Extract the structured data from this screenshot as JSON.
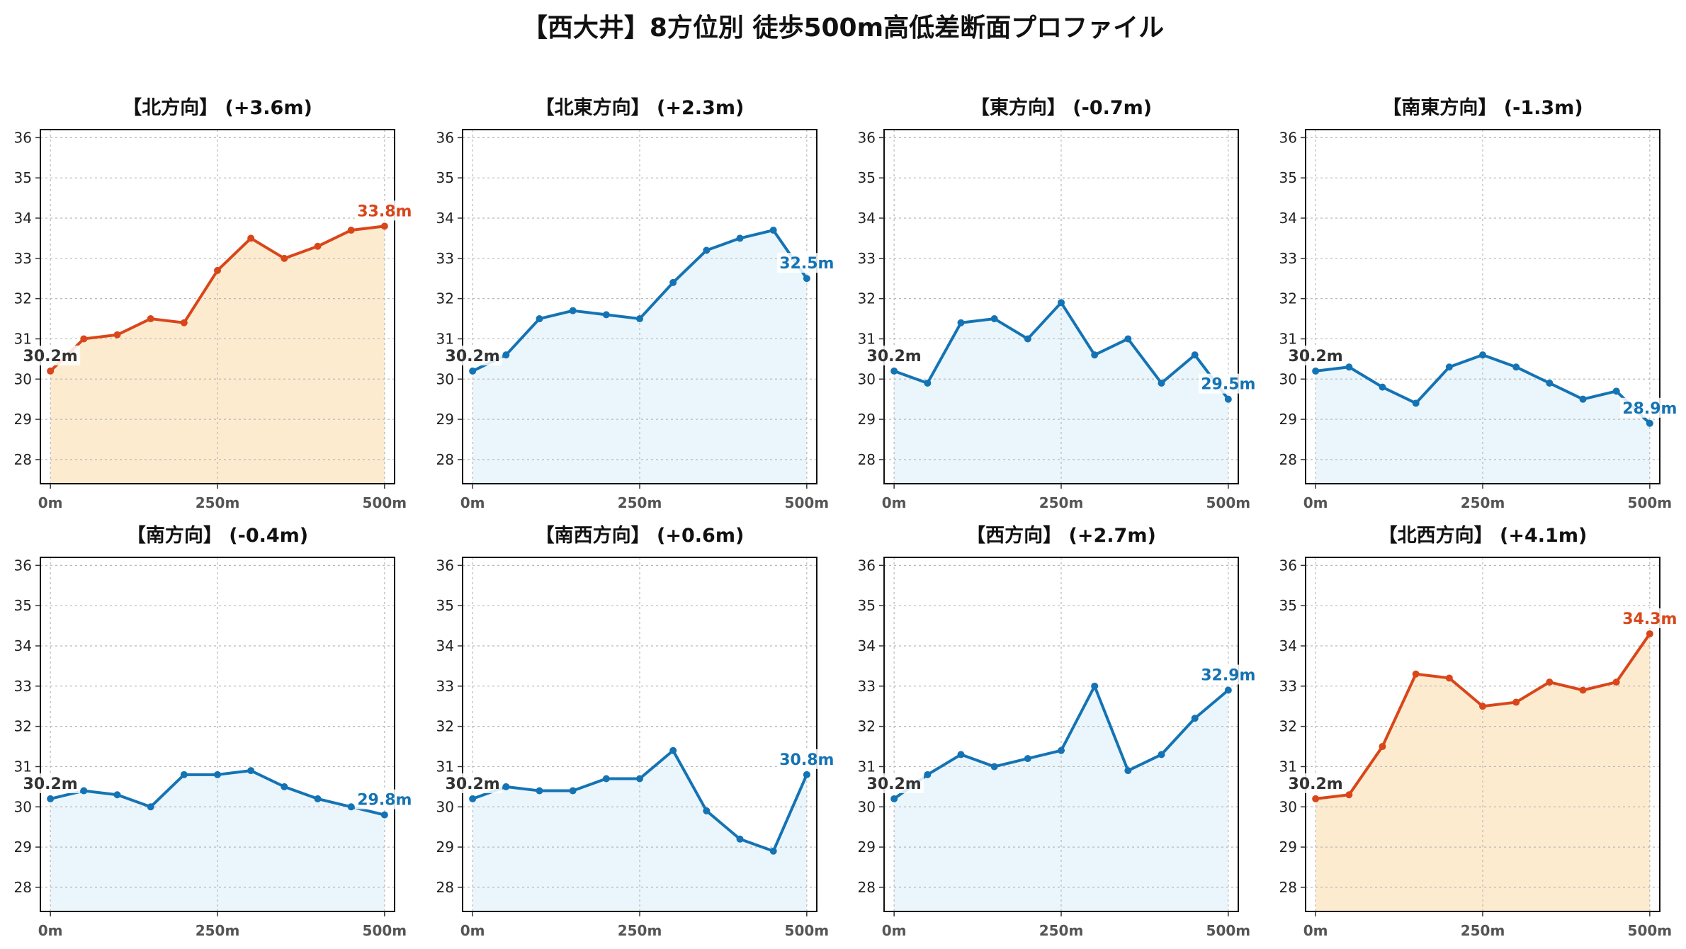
{
  "title": "【西大井】8方位別 徒歩500m高低差断面プロファイル",
  "colors": {
    "up_line": "#d9461a",
    "up_fill": "#fdebd0",
    "down_line": "#1473b4",
    "down_fill": "#eaf6fb",
    "start_label": "#333333"
  },
  "chart_data": [
    {
      "type": "area",
      "title": "【北方向】 (+3.6m)",
      "trend": "up",
      "x": [
        0,
        50,
        100,
        150,
        200,
        250,
        300,
        350,
        400,
        450,
        500
      ],
      "values": [
        30.2,
        31.0,
        31.1,
        31.5,
        31.4,
        32.7,
        33.5,
        33.0,
        33.3,
        33.7,
        33.8
      ],
      "start_label": "30.2m",
      "end_label": "33.8m",
      "xticks": [
        "0m",
        "250m",
        "500m"
      ],
      "yticks": [
        28,
        29,
        30,
        31,
        32,
        33,
        34,
        35,
        36
      ],
      "ylim": [
        27.4,
        36.2
      ],
      "xlim": [
        -15,
        515
      ],
      "grid": true
    },
    {
      "type": "area",
      "title": "【北東方向】 (+2.3m)",
      "trend": "down",
      "x": [
        0,
        50,
        100,
        150,
        200,
        250,
        300,
        350,
        400,
        450,
        500
      ],
      "values": [
        30.2,
        30.6,
        31.5,
        31.7,
        31.6,
        31.5,
        32.4,
        33.2,
        33.5,
        33.7,
        32.5
      ],
      "start_label": "30.2m",
      "end_label": "32.5m",
      "xticks": [
        "0m",
        "250m",
        "500m"
      ],
      "yticks": [
        28,
        29,
        30,
        31,
        32,
        33,
        34,
        35,
        36
      ],
      "ylim": [
        27.4,
        36.2
      ],
      "xlim": [
        -15,
        515
      ],
      "grid": true
    },
    {
      "type": "area",
      "title": "【東方向】 (-0.7m)",
      "trend": "down",
      "x": [
        0,
        50,
        100,
        150,
        200,
        250,
        300,
        350,
        400,
        450,
        500
      ],
      "values": [
        30.2,
        29.9,
        31.4,
        31.5,
        31.0,
        31.9,
        30.6,
        31.0,
        29.9,
        30.6,
        29.5
      ],
      "start_label": "30.2m",
      "end_label": "29.5m",
      "xticks": [
        "0m",
        "250m",
        "500m"
      ],
      "yticks": [
        28,
        29,
        30,
        31,
        32,
        33,
        34,
        35,
        36
      ],
      "ylim": [
        27.4,
        36.2
      ],
      "xlim": [
        -15,
        515
      ],
      "grid": true
    },
    {
      "type": "area",
      "title": "【南東方向】 (-1.3m)",
      "trend": "down",
      "x": [
        0,
        50,
        100,
        150,
        200,
        250,
        300,
        350,
        400,
        450,
        500
      ],
      "values": [
        30.2,
        30.3,
        29.8,
        29.4,
        30.3,
        30.6,
        30.3,
        29.9,
        29.5,
        29.7,
        28.9
      ],
      "start_label": "30.2m",
      "end_label": "28.9m",
      "xticks": [
        "0m",
        "250m",
        "500m"
      ],
      "yticks": [
        28,
        29,
        30,
        31,
        32,
        33,
        34,
        35,
        36
      ],
      "ylim": [
        27.4,
        36.2
      ],
      "xlim": [
        -15,
        515
      ],
      "grid": true
    },
    {
      "type": "area",
      "title": "【南方向】 (-0.4m)",
      "trend": "down",
      "x": [
        0,
        50,
        100,
        150,
        200,
        250,
        300,
        350,
        400,
        450,
        500
      ],
      "values": [
        30.2,
        30.4,
        30.3,
        30.0,
        30.8,
        30.8,
        30.9,
        30.5,
        30.2,
        30.0,
        29.8
      ],
      "start_label": "30.2m",
      "end_label": "29.8m",
      "xticks": [
        "0m",
        "250m",
        "500m"
      ],
      "yticks": [
        28,
        29,
        30,
        31,
        32,
        33,
        34,
        35,
        36
      ],
      "ylim": [
        27.4,
        36.2
      ],
      "xlim": [
        -15,
        515
      ],
      "grid": true
    },
    {
      "type": "area",
      "title": "【南西方向】 (+0.6m)",
      "trend": "down",
      "x": [
        0,
        50,
        100,
        150,
        200,
        250,
        300,
        350,
        400,
        450,
        500
      ],
      "values": [
        30.2,
        30.5,
        30.4,
        30.4,
        30.7,
        30.7,
        31.4,
        29.9,
        29.2,
        28.9,
        30.8
      ],
      "start_label": "30.2m",
      "end_label": "30.8m",
      "xticks": [
        "0m",
        "250m",
        "500m"
      ],
      "yticks": [
        28,
        29,
        30,
        31,
        32,
        33,
        34,
        35,
        36
      ],
      "ylim": [
        27.4,
        36.2
      ],
      "xlim": [
        -15,
        515
      ],
      "grid": true
    },
    {
      "type": "area",
      "title": "【西方向】 (+2.7m)",
      "trend": "down",
      "x": [
        0,
        50,
        100,
        150,
        200,
        250,
        300,
        350,
        400,
        450,
        500
      ],
      "values": [
        30.2,
        30.8,
        31.3,
        31.0,
        31.2,
        31.4,
        33.0,
        30.9,
        31.3,
        32.2,
        32.9
      ],
      "start_label": "30.2m",
      "end_label": "32.9m",
      "xticks": [
        "0m",
        "250m",
        "500m"
      ],
      "yticks": [
        28,
        29,
        30,
        31,
        32,
        33,
        34,
        35,
        36
      ],
      "ylim": [
        27.4,
        36.2
      ],
      "xlim": [
        -15,
        515
      ],
      "grid": true
    },
    {
      "type": "area",
      "title": "【北西方向】 (+4.1m)",
      "trend": "up",
      "x": [
        0,
        50,
        100,
        150,
        200,
        250,
        300,
        350,
        400,
        450,
        500
      ],
      "values": [
        30.2,
        30.3,
        31.5,
        33.3,
        33.2,
        32.5,
        32.6,
        33.1,
        32.9,
        33.1,
        34.3
      ],
      "start_label": "30.2m",
      "end_label": "34.3m",
      "xticks": [
        "0m",
        "250m",
        "500m"
      ],
      "yticks": [
        28,
        29,
        30,
        31,
        32,
        33,
        34,
        35,
        36
      ],
      "ylim": [
        27.4,
        36.2
      ],
      "xlim": [
        -15,
        515
      ],
      "grid": true
    }
  ]
}
